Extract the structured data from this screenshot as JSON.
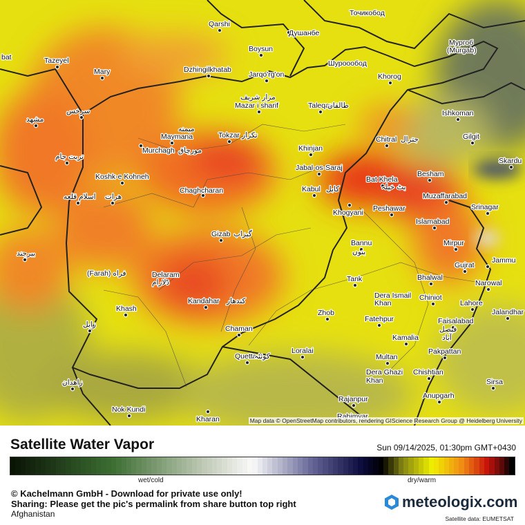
{
  "map": {
    "places": [
      "bat",
      "Tazeyel",
      "Mary",
      "Qarshi",
      "Boysun",
      "Душанбе",
      "Точикобод",
      "Мургоб",
      "(Murgab)",
      "Dzhingilkhatab",
      "Jarqo'rg'on",
      "Шуроообод",
      "Khorog",
      "مشهد",
      "سرخس",
      "مزار شریف",
      "Mazar i sharif",
      "Taleqan",
      "طالقان",
      "Ishkoman",
      "Gilgit",
      "Chitral",
      "جترال",
      "Skardu",
      "میمنه",
      "Maymana",
      "Tokzar",
      "تکزار",
      "Khinjan",
      "Murchagh",
      "مورچاق",
      "تربت جام",
      "Jabal-os-Saraj",
      "Koshk-e Kohneh",
      "Bat Khela",
      "بٹ خیلہ",
      "Besham",
      "Chaghcharan",
      "اسلام قلعه",
      "هرات",
      "Kabul",
      "کابل",
      "Muzaffarabad",
      "Peshawar",
      "Khogyani",
      "Srinagar",
      "Islamabad",
      "Gizab",
      "گیزاب",
      "Bannu",
      "بنوں",
      "بیرجند",
      "Mirpur",
      "Gujrat",
      "Jammu",
      "(Farah) فراه",
      "Delaram",
      "دلارام",
      "Bhalwal",
      "Tank",
      "Narowal",
      "Dera Ismail",
      "Khan",
      "Chiniot",
      "Lahore",
      "Kandahar",
      "کندهار",
      "Khash",
      "Zhob",
      "Jalandhar",
      "Fatehpur",
      "Faisalabad",
      "فیصل",
      "آباد",
      "زابل",
      "Chaman",
      "Kamalia",
      "Loralai",
      "Quetta",
      "کوئٹہ",
      "Multan",
      "Pakpattan",
      "Dera Ghazi",
      "Khan",
      "Chishtian",
      "زاهدان",
      "Sirsa",
      "Anupgarh",
      "Rajanpur",
      "Nok Kundi",
      "Kharan",
      "Rahimyar"
    ],
    "attribution": "Map data © OpenStreetMap contributors, rendering GIScience Research Group @ Heidelberg University"
  },
  "footer": {
    "title": "Satellite Water Vapor",
    "timestamp": "Sun 09/14/2025, 01:30pm GMT+0430",
    "legend_low": "wet/cold",
    "legend_high": "dry/warm",
    "copyright": "© Kachelmann GmbH - Download for private use only!",
    "sharing": "Sharing: Please get the pic's permalink from share button top right",
    "region": "Afghanistan",
    "brand": "meteologix.com",
    "satellite_credit": "Satellite data: EUMETSAT"
  }
}
